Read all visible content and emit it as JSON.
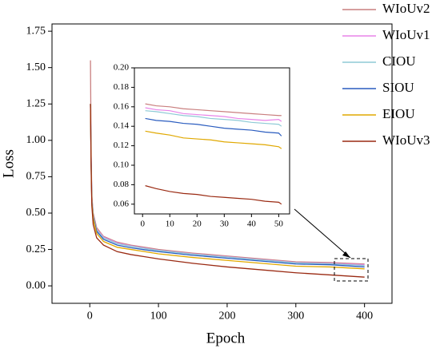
{
  "chart_data": [
    {
      "type": "line",
      "xlabel": "Epoch",
      "ylabel": "Loss",
      "x": [
        1,
        2,
        3,
        5,
        10,
        20,
        40,
        60,
        80,
        100,
        150,
        200,
        250,
        300,
        350,
        400
      ],
      "xlim": [
        -55,
        440
      ],
      "xticks": [
        0,
        100,
        200,
        300,
        400
      ],
      "ylim": [
        -0.12,
        1.8
      ],
      "yticks": [
        {
          "value": 0,
          "label": "0.00"
        },
        0.25,
        {
          "value": 0.5,
          "label": "0.50"
        },
        0.75,
        {
          "value": 1,
          "label": "1.00"
        },
        1.25,
        {
          "value": 1.5,
          "label": "1.50"
        },
        1.75
      ],
      "legend": "outside-top-right",
      "series": [
        {
          "name": "WIoUv2",
          "color": "#c97f7f",
          "values": [
            1.55,
            0.9,
            0.62,
            0.5,
            0.4,
            0.34,
            0.3,
            0.28,
            0.265,
            0.25,
            0.225,
            0.205,
            0.185,
            0.165,
            0.16,
            0.15
          ]
        },
        {
          "name": "WIoUv1",
          "color": "#e884e8",
          "values": [
            1.25,
            0.85,
            0.6,
            0.48,
            0.39,
            0.335,
            0.295,
            0.275,
            0.26,
            0.245,
            0.22,
            0.2,
            0.18,
            0.16,
            0.155,
            0.145
          ]
        },
        {
          "name": "CIOU",
          "color": "#8ecad6",
          "values": [
            1.25,
            0.85,
            0.6,
            0.48,
            0.385,
            0.33,
            0.29,
            0.272,
            0.257,
            0.243,
            0.218,
            0.198,
            0.178,
            0.158,
            0.152,
            0.14
          ]
        },
        {
          "name": "SIOU",
          "color": "#2a5cbf",
          "values": [
            1.25,
            0.85,
            0.58,
            0.47,
            0.375,
            0.32,
            0.28,
            0.262,
            0.248,
            0.235,
            0.21,
            0.19,
            0.17,
            0.15,
            0.145,
            0.13
          ]
        },
        {
          "name": "EIOU",
          "color": "#e0a800",
          "values": [
            1.25,
            0.82,
            0.57,
            0.46,
            0.36,
            0.305,
            0.265,
            0.25,
            0.235,
            0.22,
            0.195,
            0.175,
            0.155,
            0.135,
            0.13,
            0.117
          ]
        },
        {
          "name": "WIoUv3",
          "color": "#9a2a12",
          "values": [
            1.25,
            0.8,
            0.55,
            0.42,
            0.33,
            0.28,
            0.235,
            0.215,
            0.2,
            0.185,
            0.155,
            0.13,
            0.11,
            0.09,
            0.075,
            0.06
          ]
        }
      ]
    },
    {
      "type": "line",
      "x": [
        1,
        5,
        10,
        15,
        20,
        25,
        30,
        35,
        40,
        45,
        50,
        51
      ],
      "xlim": [
        -3,
        54
      ],
      "xticks": [
        0,
        10,
        20,
        30,
        40,
        50
      ],
      "ylim": [
        0.05,
        0.2
      ],
      "yticks": [
        0.06,
        0.08,
        {
          "value": 0.1,
          "label": "0.10"
        },
        0.12,
        0.14,
        0.16,
        0.18,
        {
          "value": 0.2,
          "label": "0.20"
        }
      ],
      "series": [
        {
          "color": "#c97f7f",
          "values": [
            0.163,
            0.161,
            0.16,
            0.158,
            0.157,
            0.156,
            0.155,
            0.154,
            0.153,
            0.152,
            0.151,
            0.151
          ]
        },
        {
          "color": "#e884e8",
          "values": [
            0.159,
            0.157,
            0.156,
            0.153,
            0.152,
            0.151,
            0.15,
            0.148,
            0.147,
            0.146,
            0.147,
            0.145
          ]
        },
        {
          "color": "#8ecad6",
          "values": [
            0.156,
            0.155,
            0.153,
            0.151,
            0.15,
            0.148,
            0.147,
            0.146,
            0.144,
            0.143,
            0.142,
            0.14
          ]
        },
        {
          "color": "#2a5cbf",
          "values": [
            0.148,
            0.146,
            0.145,
            0.143,
            0.142,
            0.14,
            0.138,
            0.137,
            0.136,
            0.134,
            0.133,
            0.13
          ]
        },
        {
          "color": "#e0a800",
          "values": [
            0.135,
            0.133,
            0.131,
            0.128,
            0.127,
            0.126,
            0.124,
            0.123,
            0.122,
            0.121,
            0.119,
            0.117
          ]
        },
        {
          "color": "#9a2a12",
          "values": [
            0.079,
            0.076,
            0.073,
            0.071,
            0.07,
            0.068,
            0.067,
            0.066,
            0.065,
            0.063,
            0.062,
            0.06
          ]
        }
      ]
    }
  ]
}
